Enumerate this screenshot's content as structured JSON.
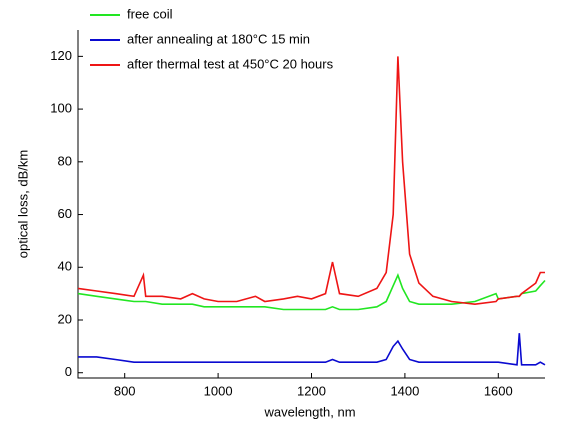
{
  "chart_data": {
    "type": "line",
    "xlabel": "wavelength, nm",
    "ylabel": "optical loss, dB/km",
    "xlim": [
      700,
      1700
    ],
    "ylim": [
      -2,
      130
    ],
    "xticks": [
      800,
      1000,
      1200,
      1400,
      1600
    ],
    "yticks": [
      0,
      20,
      40,
      60,
      80,
      100,
      120
    ],
    "grid": false,
    "legend": "top-left",
    "x": [
      700,
      740,
      780,
      820,
      840,
      845,
      880,
      920,
      945,
      970,
      1000,
      1040,
      1080,
      1100,
      1140,
      1170,
      1200,
      1230,
      1245,
      1260,
      1300,
      1340,
      1360,
      1375,
      1385,
      1395,
      1410,
      1430,
      1460,
      1500,
      1550,
      1595,
      1600,
      1640,
      1645,
      1650,
      1680,
      1690,
      1700
    ],
    "series": [
      {
        "name": "free coil",
        "color": "#22e622",
        "values": [
          30,
          29,
          28,
          27,
          27,
          27,
          26,
          26,
          26,
          25,
          25,
          25,
          25,
          25,
          24,
          24,
          24,
          24,
          25,
          24,
          24,
          25,
          27,
          33,
          37,
          32,
          27,
          26,
          26,
          26,
          27,
          30,
          28,
          29,
          29,
          30,
          31,
          33,
          35
        ]
      },
      {
        "name": "after annealing at 180°C 15 min",
        "color": "#0a0ad0",
        "values": [
          6,
          6,
          5,
          4,
          4,
          4,
          4,
          4,
          4,
          4,
          4,
          4,
          4,
          4,
          4,
          4,
          4,
          4,
          5,
          4,
          4,
          4,
          5,
          10,
          12,
          9,
          5,
          4,
          4,
          4,
          4,
          4,
          4,
          3,
          15,
          3,
          3,
          4,
          3
        ]
      },
      {
        "name": "after thermal test at 450°C 20 hours",
        "color": "#ee1515",
        "values": [
          32,
          31,
          30,
          29,
          37,
          29,
          29,
          28,
          30,
          28,
          27,
          27,
          29,
          27,
          28,
          29,
          28,
          30,
          42,
          30,
          29,
          32,
          38,
          60,
          120,
          80,
          45,
          34,
          29,
          27,
          26,
          27,
          28,
          29,
          29,
          30,
          34,
          38,
          38
        ]
      }
    ]
  }
}
